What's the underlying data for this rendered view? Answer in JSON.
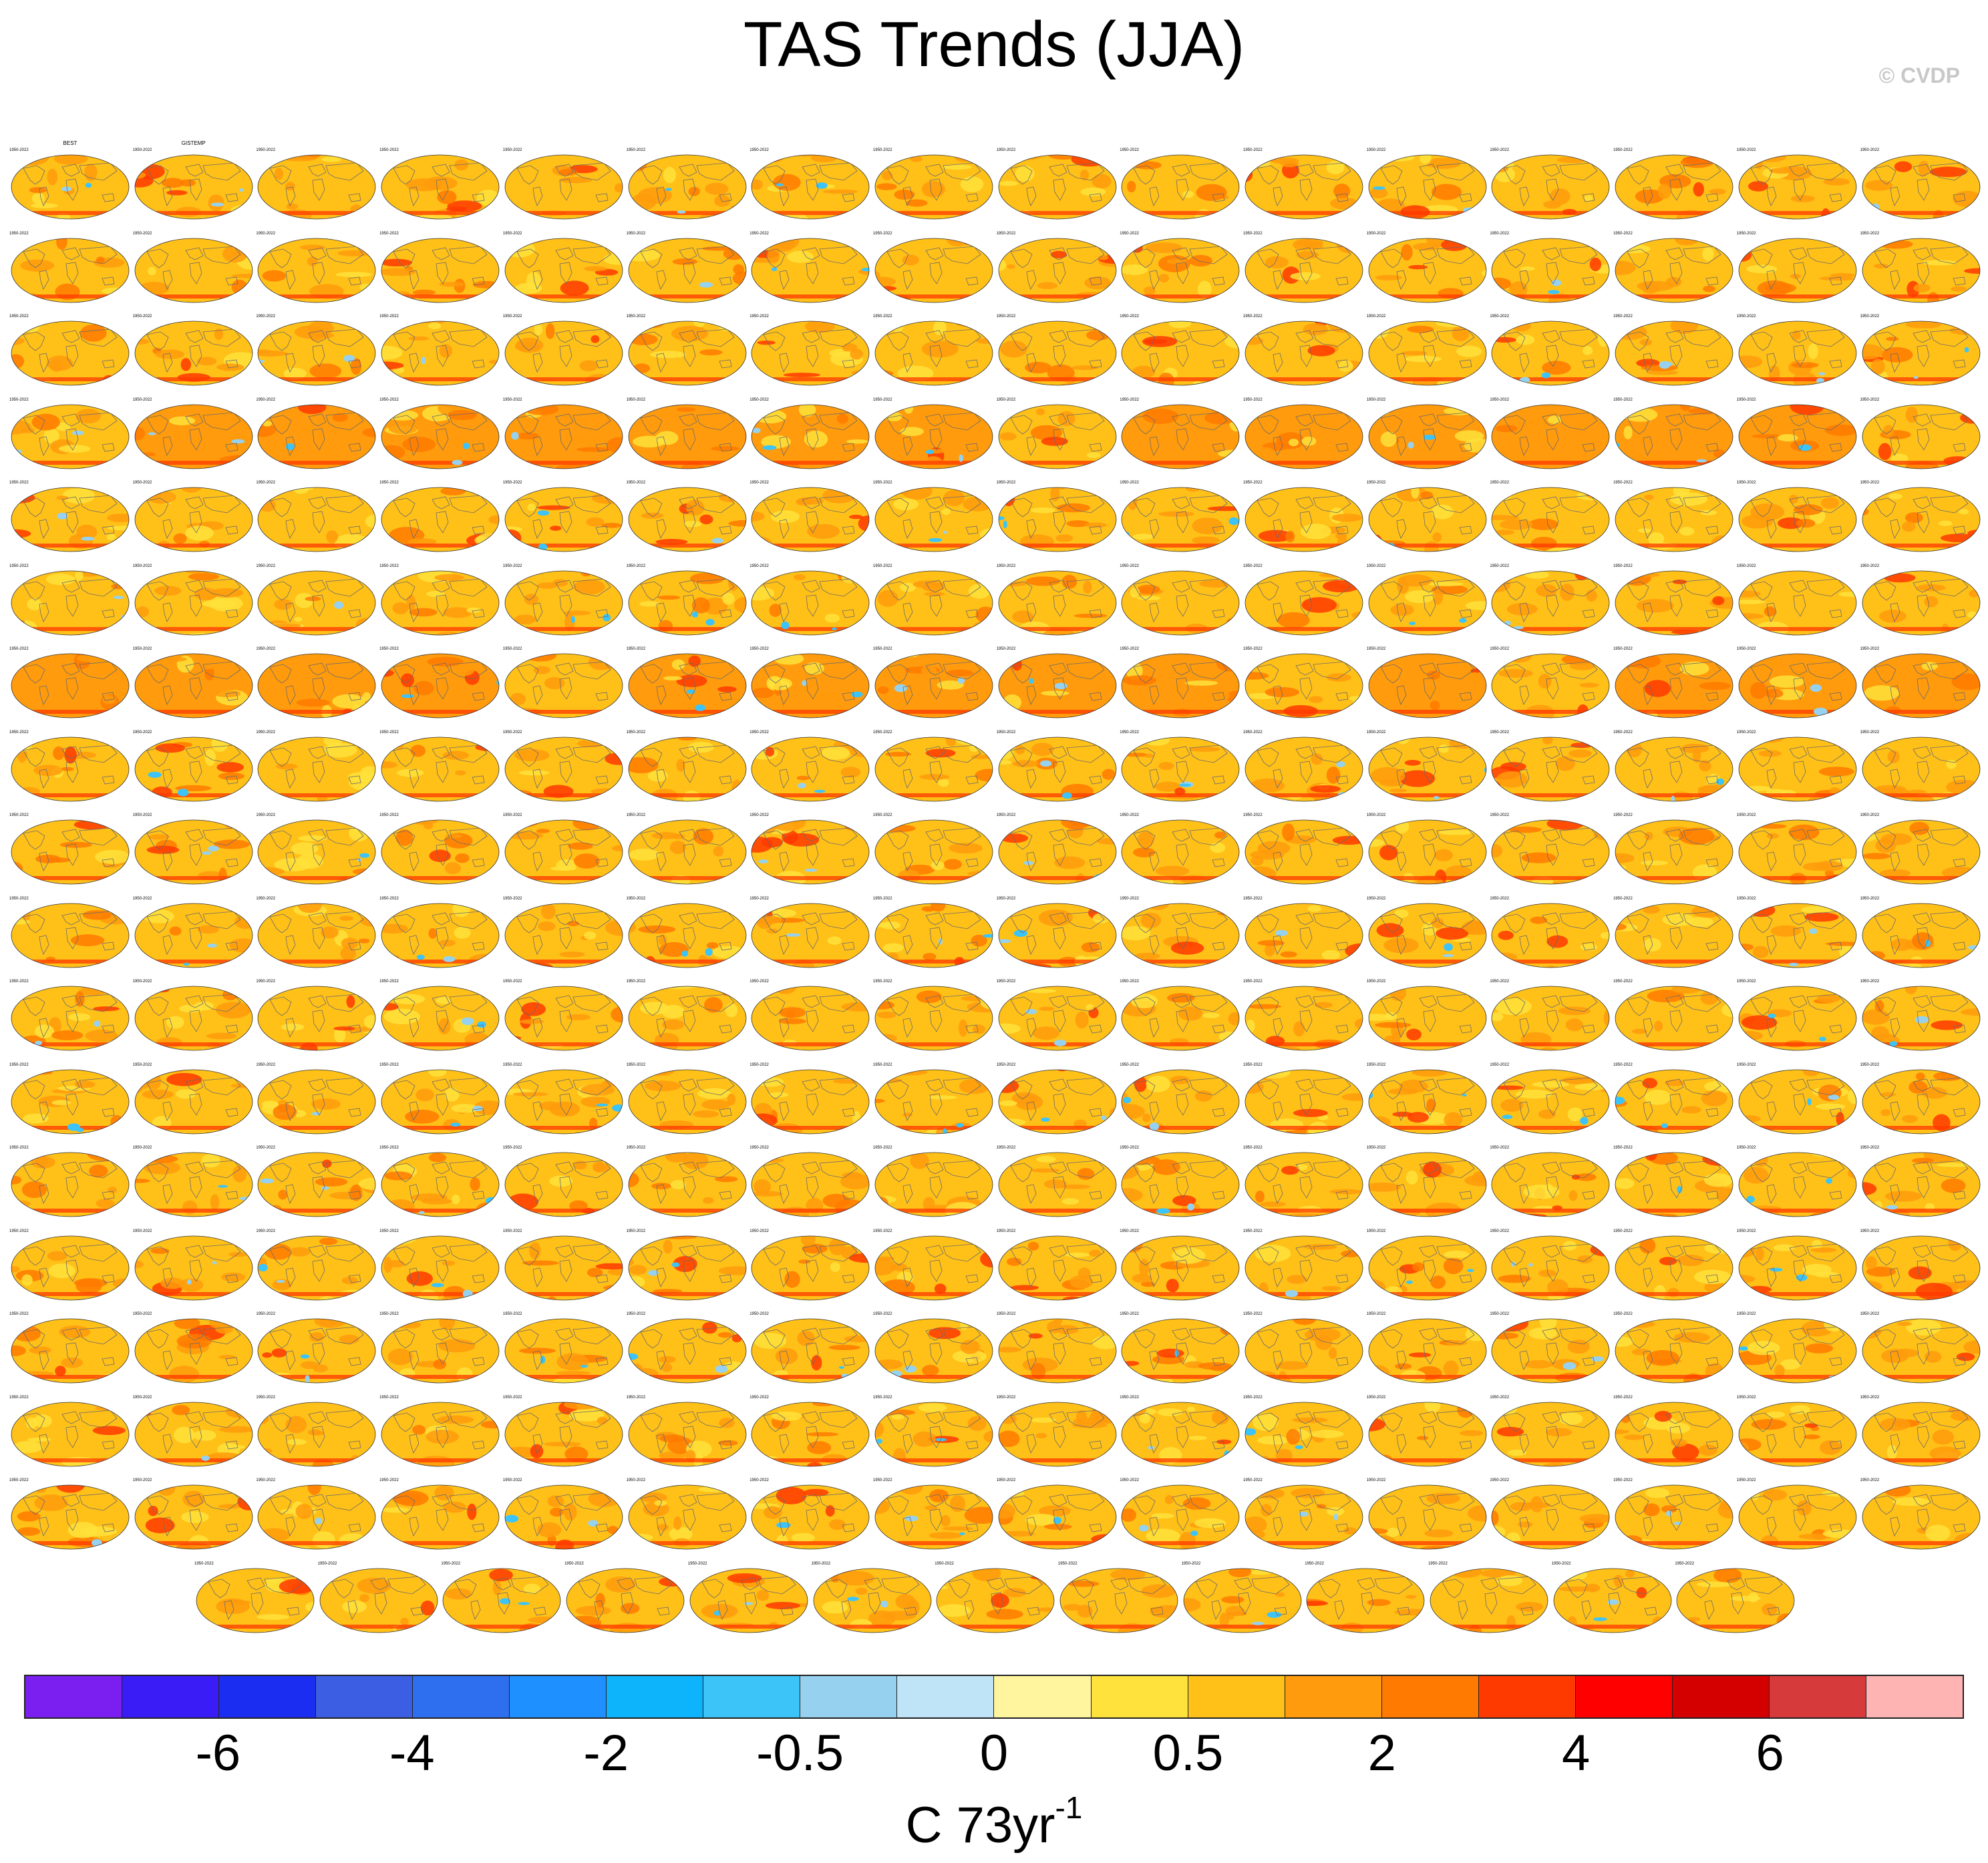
{
  "title": "TAS Trends (JJA)",
  "credit": "© CVDP",
  "colorbar": {
    "colors": [
      "#7b1ff0",
      "#3a1cf6",
      "#1b2df0",
      "#3b5ee3",
      "#2e6ff0",
      "#1e90ff",
      "#0db4fb",
      "#3cc4f8",
      "#96d2ef",
      "#bfe4f7",
      "#fff59e",
      "#ffe23b",
      "#ffc018",
      "#ff9b0c",
      "#ff7a00",
      "#ff3a00",
      "#ff0000",
      "#d40000",
      "#d63a3a",
      "#ffb4b4"
    ],
    "tick_labels": [
      "-6",
      "-4",
      "-2",
      "-0.5",
      "0",
      "0.5",
      "2",
      "4",
      "6"
    ],
    "unit_main": "C 73yr",
    "unit_sup": "-1"
  },
  "panels": {
    "count": 285,
    "columns": 16,
    "full_rows": 17,
    "last_row_count": 13,
    "first_titles": [
      "BEST",
      "GISTEMP"
    ],
    "period_label": "1950-2022"
  }
}
